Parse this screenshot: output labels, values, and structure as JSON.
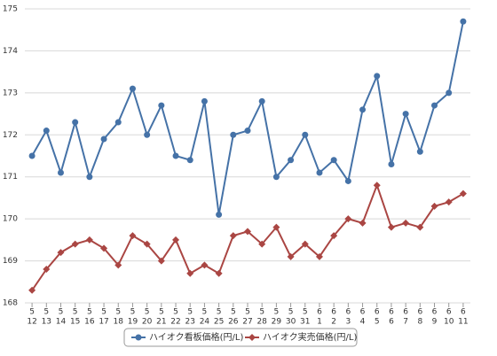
{
  "chart_data": {
    "type": "line",
    "categories": [
      [
        "5",
        "12"
      ],
      [
        "5",
        "13"
      ],
      [
        "5",
        "14"
      ],
      [
        "5",
        "15"
      ],
      [
        "5",
        "16"
      ],
      [
        "5",
        "17"
      ],
      [
        "5",
        "18"
      ],
      [
        "5",
        "19"
      ],
      [
        "5",
        "20"
      ],
      [
        "5",
        "21"
      ],
      [
        "5",
        "22"
      ],
      [
        "5",
        "23"
      ],
      [
        "5",
        "24"
      ],
      [
        "5",
        "25"
      ],
      [
        "5",
        "26"
      ],
      [
        "5",
        "27"
      ],
      [
        "5",
        "28"
      ],
      [
        "5",
        "29"
      ],
      [
        "5",
        "30"
      ],
      [
        "5",
        "31"
      ],
      [
        "6",
        "1"
      ],
      [
        "6",
        "2"
      ],
      [
        "6",
        "3"
      ],
      [
        "6",
        "4"
      ],
      [
        "6",
        "5"
      ],
      [
        "6",
        "6"
      ],
      [
        "6",
        "7"
      ],
      [
        "6",
        "8"
      ],
      [
        "6",
        "9"
      ],
      [
        "6",
        "10"
      ],
      [
        "6",
        "11"
      ]
    ],
    "series": [
      {
        "name": "ハイオク看板価格(円/L)",
        "color": "#4572a7",
        "marker": "circle",
        "values": [
          171.5,
          172.1,
          171.1,
          172.3,
          171.0,
          171.9,
          172.3,
          173.1,
          172.0,
          172.7,
          171.5,
          171.4,
          172.8,
          170.1,
          172.0,
          172.1,
          172.8,
          171.0,
          171.4,
          172.0,
          171.1,
          171.4,
          170.9,
          172.6,
          173.4,
          171.3,
          172.5,
          171.6,
          172.7,
          173.0,
          174.7
        ]
      },
      {
        "name": "ハイオク実売価格(円/L)",
        "color": "#aa4643",
        "marker": "diamond",
        "values": [
          168.3,
          168.8,
          169.2,
          169.4,
          169.5,
          169.3,
          168.9,
          169.6,
          169.4,
          169.0,
          169.5,
          168.7,
          168.9,
          168.7,
          169.6,
          169.7,
          169.4,
          169.8,
          169.1,
          169.4,
          169.1,
          169.6,
          170.0,
          169.9,
          170.8,
          169.8,
          169.9,
          169.8,
          170.3,
          170.4,
          170.6
        ]
      }
    ],
    "ylim": [
      168,
      175
    ],
    "yticks": [
      168,
      169,
      170,
      171,
      172,
      173,
      174,
      175
    ],
    "grid": true,
    "legend": "bottom"
  }
}
